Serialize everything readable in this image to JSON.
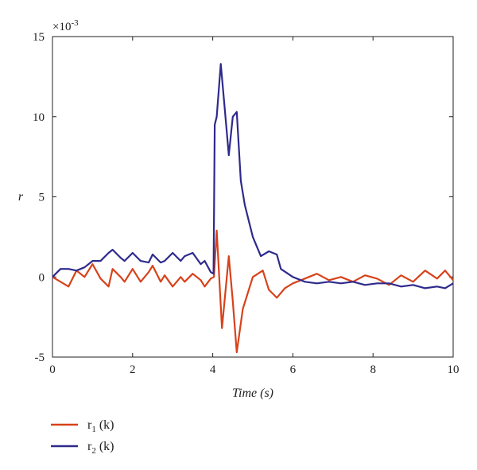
{
  "chart_data": {
    "type": "line",
    "xlabel": "Time (s)",
    "ylabel": "r",
    "y_multiplier": "×10",
    "y_multiplier_exp": "-3",
    "xlim": [
      0,
      10
    ],
    "ylim": [
      -5,
      15
    ],
    "x_ticks": [
      "0",
      "2",
      "4",
      "6",
      "8",
      "10"
    ],
    "y_ticks": [
      "-5",
      "0",
      "5",
      "10",
      "15"
    ],
    "grid": false,
    "legend_position": "bottom-left, below plot",
    "series": [
      {
        "name_main": "r",
        "name_sub": "1",
        "name_suffix": " (k)",
        "color": "#d7421a",
        "x": [
          0,
          0.2,
          0.4,
          0.6,
          0.8,
          1.0,
          1.2,
          1.4,
          1.5,
          1.7,
          1.8,
          2.0,
          2.2,
          2.4,
          2.5,
          2.7,
          2.8,
          3.0,
          3.2,
          3.3,
          3.5,
          3.7,
          3.8,
          3.95,
          4.03,
          4.1,
          4.23,
          4.4,
          4.5,
          4.6,
          4.75,
          5.0,
          5.25,
          5.4,
          5.6,
          5.8,
          6.0,
          6.3,
          6.6,
          6.9,
          7.2,
          7.5,
          7.8,
          8.1,
          8.4,
          8.7,
          9.0,
          9.3,
          9.6,
          9.8,
          10.0
        ],
        "y": [
          0.0,
          -0.3,
          -0.6,
          0.4,
          0.0,
          0.8,
          -0.1,
          -0.6,
          0.5,
          0.0,
          -0.3,
          0.5,
          -0.3,
          0.3,
          0.7,
          -0.3,
          0.1,
          -0.6,
          0.0,
          -0.3,
          0.2,
          -0.2,
          -0.6,
          -0.1,
          0.0,
          2.9,
          -3.2,
          1.3,
          -1.5,
          -4.7,
          -2.0,
          0.0,
          0.4,
          -0.8,
          -1.3,
          -0.7,
          -0.4,
          -0.1,
          0.2,
          -0.2,
          0.0,
          -0.3,
          0.1,
          -0.1,
          -0.5,
          0.1,
          -0.3,
          0.4,
          -0.1,
          0.4,
          -0.2
        ]
      },
      {
        "name_main": "r",
        "name_sub": "2",
        "name_suffix": " (k)",
        "color": "#2e2a8c",
        "x": [
          0,
          0.2,
          0.4,
          0.6,
          0.8,
          1.0,
          1.2,
          1.4,
          1.5,
          1.7,
          1.8,
          2.0,
          2.2,
          2.4,
          2.5,
          2.7,
          2.8,
          3.0,
          3.2,
          3.3,
          3.5,
          3.7,
          3.8,
          3.95,
          4.02,
          4.05,
          4.1,
          4.2,
          4.3,
          4.4,
          4.5,
          4.6,
          4.7,
          4.8,
          5.0,
          5.2,
          5.4,
          5.5,
          5.6,
          5.7,
          6.0,
          6.3,
          6.6,
          6.9,
          7.2,
          7.5,
          7.8,
          8.1,
          8.4,
          8.7,
          9.0,
          9.3,
          9.6,
          9.8,
          10.0
        ],
        "y": [
          0.0,
          0.5,
          0.5,
          0.4,
          0.6,
          1.0,
          1.0,
          1.5,
          1.7,
          1.2,
          1.0,
          1.5,
          1.0,
          0.9,
          1.4,
          0.9,
          1.0,
          1.5,
          1.0,
          1.3,
          1.5,
          0.8,
          1.0,
          0.3,
          0.2,
          9.5,
          10.0,
          13.3,
          10.5,
          7.6,
          10.0,
          10.3,
          6.0,
          4.5,
          2.5,
          1.3,
          1.6,
          1.5,
          1.4,
          0.5,
          0.0,
          -0.3,
          -0.4,
          -0.3,
          -0.4,
          -0.3,
          -0.5,
          -0.4,
          -0.4,
          -0.6,
          -0.5,
          -0.7,
          -0.6,
          -0.7,
          -0.4
        ]
      }
    ]
  }
}
